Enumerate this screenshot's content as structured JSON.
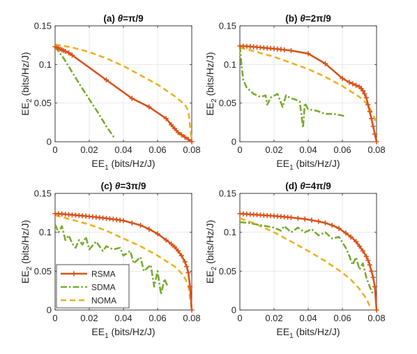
{
  "colors": {
    "RSMA": "#d95319",
    "SDMA": "#77ac30",
    "NOMA": "#edb120"
  },
  "legend": {
    "panel": 2,
    "placement": "bottom-left",
    "entries": [
      "RSMA",
      "SDMA",
      "NOMA"
    ]
  },
  "chart_data": [
    {
      "type": "line",
      "title_prefix": "(a) ",
      "title_theta": "θ",
      "title_value": "=π/9",
      "xlabel_main": "EE",
      "xlabel_sub": "1",
      "xlabel_unit": " (bits/Hz/J)",
      "ylabel_main": "EE",
      "ylabel_sub": "2",
      "ylabel_unit": " (bits/Hz/J)",
      "xlim": [
        0,
        0.08
      ],
      "ylim": [
        0,
        0.15
      ],
      "xticks": [
        0,
        0.02,
        0.04,
        0.06,
        0.08
      ],
      "xtick_labels": [
        "0",
        "0.02",
        "0.04",
        "0.06",
        "0.08"
      ],
      "yticks": [
        0,
        0.05,
        0.1,
        0.15
      ],
      "ytick_labels": [
        "0",
        "0.05",
        "0.1",
        "0.15"
      ],
      "grid": true,
      "series": [
        {
          "name": "RSMA",
          "style": "solid-plus",
          "x": [
            0,
            0.001,
            0.002,
            0.003,
            0.004,
            0.005,
            0.006,
            0.008,
            0.01,
            0.03,
            0.045,
            0.055,
            0.065,
            0.068,
            0.07,
            0.072,
            0.074,
            0.076,
            0.078,
            0.08
          ],
          "y": [
            0.123,
            0.122,
            0.121,
            0.12,
            0.119,
            0.118,
            0.117,
            0.115,
            0.112,
            0.08,
            0.056,
            0.045,
            0.03,
            0.022,
            0.017,
            0.012,
            0.009,
            0.006,
            0.003,
            0.0
          ]
        },
        {
          "name": "SDMA",
          "style": "dashdot",
          "x": [
            0,
            0.005,
            0.01,
            0.015,
            0.02,
            0.025,
            0.03,
            0.035
          ],
          "y": [
            0.123,
            0.108,
            0.09,
            0.072,
            0.055,
            0.038,
            0.02,
            0.004
          ]
        },
        {
          "name": "NOMA",
          "style": "dashed",
          "x": [
            0,
            0.01,
            0.02,
            0.03,
            0.04,
            0.05,
            0.06,
            0.07,
            0.076,
            0.078,
            0.08
          ],
          "y": [
            0.126,
            0.122,
            0.116,
            0.108,
            0.098,
            0.086,
            0.074,
            0.059,
            0.048,
            0.04,
            0.0
          ]
        }
      ]
    },
    {
      "type": "line",
      "title_prefix": "(b) ",
      "title_theta": "θ",
      "title_value": "=2π/9",
      "xlabel_main": "EE",
      "xlabel_sub": "1",
      "xlabel_unit": " (bits/Hz/J)",
      "ylabel_main": "EE",
      "ylabel_sub": "2",
      "ylabel_unit": " (bits/Hz/J)",
      "xlim": [
        0,
        0.08
      ],
      "ylim": [
        0,
        0.15
      ],
      "xticks": [
        0,
        0.02,
        0.04,
        0.06,
        0.08
      ],
      "xtick_labels": [
        "0",
        "0.02",
        "0.04",
        "0.06",
        "0.08"
      ],
      "yticks": [
        0,
        0.05,
        0.1,
        0.15
      ],
      "ytick_labels": [
        "0",
        "0.05",
        "0.1",
        "0.15"
      ],
      "grid": true,
      "series": [
        {
          "name": "RSMA",
          "style": "solid-plus",
          "x": [
            0,
            0.002,
            0.004,
            0.006,
            0.008,
            0.01,
            0.012,
            0.014,
            0.016,
            0.018,
            0.02,
            0.022,
            0.024,
            0.026,
            0.03,
            0.04,
            0.05,
            0.06,
            0.064,
            0.066,
            0.068,
            0.07,
            0.071,
            0.072,
            0.073,
            0.074,
            0.075,
            0.076,
            0.077,
            0.078,
            0.079,
            0.08
          ],
          "y": [
            0.124,
            0.1238,
            0.1235,
            0.1232,
            0.1228,
            0.1224,
            0.122,
            0.1216,
            0.1212,
            0.1208,
            0.1204,
            0.12,
            0.1195,
            0.119,
            0.118,
            0.114,
            0.101,
            0.082,
            0.077,
            0.075,
            0.073,
            0.071,
            0.069,
            0.066,
            0.062,
            0.057,
            0.048,
            0.039,
            0.03,
            0.02,
            0.01,
            0.0
          ]
        },
        {
          "name": "SDMA",
          "style": "dashdot",
          "x": [
            0,
            0.001,
            0.002,
            0.004,
            0.008,
            0.012,
            0.015,
            0.016,
            0.018,
            0.022,
            0.025,
            0.027,
            0.03,
            0.032,
            0.035,
            0.037,
            0.038,
            0.04,
            0.045,
            0.05,
            0.055,
            0.06,
            0.062
          ],
          "y": [
            0.124,
            0.098,
            0.08,
            0.07,
            0.062,
            0.058,
            0.06,
            0.048,
            0.057,
            0.062,
            0.045,
            0.06,
            0.056,
            0.055,
            0.052,
            0.018,
            0.05,
            0.042,
            0.04,
            0.036,
            0.036,
            0.034,
            0.032
          ]
        },
        {
          "name": "NOMA",
          "style": "dashed",
          "x": [
            0,
            0.01,
            0.02,
            0.03,
            0.04,
            0.05,
            0.06,
            0.07,
            0.075,
            0.078,
            0.08
          ],
          "y": [
            0.122,
            0.116,
            0.11,
            0.102,
            0.094,
            0.084,
            0.072,
            0.058,
            0.048,
            0.035,
            0.024
          ]
        }
      ]
    },
    {
      "type": "line",
      "title_prefix": "(c) ",
      "title_theta": "θ",
      "title_value": "=3π/9",
      "xlabel_main": "EE",
      "xlabel_sub": "1",
      "xlabel_unit": " (bits/Hz/J)",
      "ylabel_main": "EE",
      "ylabel_sub": "2",
      "ylabel_unit": " (bits/Hz/J)",
      "xlim": [
        0,
        0.08
      ],
      "ylim": [
        0,
        0.15
      ],
      "xticks": [
        0,
        0.02,
        0.04,
        0.06,
        0.08
      ],
      "xtick_labels": [
        "0",
        "0.02",
        "0.04",
        "0.06",
        "0.08"
      ],
      "yticks": [
        0,
        0.05,
        0.1,
        0.15
      ],
      "ytick_labels": [
        "0",
        "0.05",
        "0.1",
        "0.15"
      ],
      "grid": true,
      "series": [
        {
          "name": "RSMA",
          "style": "solid-plus",
          "x": [
            0,
            0.002,
            0.004,
            0.006,
            0.008,
            0.01,
            0.012,
            0.014,
            0.016,
            0.018,
            0.02,
            0.022,
            0.024,
            0.026,
            0.028,
            0.03,
            0.032,
            0.034,
            0.036,
            0.038,
            0.04,
            0.045,
            0.05,
            0.055,
            0.06,
            0.065,
            0.068,
            0.07,
            0.072,
            0.074,
            0.076,
            0.077,
            0.078,
            0.079,
            0.08
          ],
          "y": [
            0.124,
            0.1238,
            0.1235,
            0.1232,
            0.1228,
            0.1224,
            0.122,
            0.1216,
            0.1212,
            0.1208,
            0.1204,
            0.1199,
            0.1194,
            0.1189,
            0.1184,
            0.1179,
            0.1174,
            0.1168,
            0.1162,
            0.1156,
            0.115,
            0.112,
            0.109,
            0.104,
            0.098,
            0.09,
            0.085,
            0.081,
            0.076,
            0.07,
            0.062,
            0.056,
            0.048,
            0.03,
            0.0
          ]
        },
        {
          "name": "SDMA",
          "style": "dashdot",
          "x": [
            0,
            0.002,
            0.004,
            0.006,
            0.008,
            0.01,
            0.012,
            0.014,
            0.016,
            0.018,
            0.02,
            0.024,
            0.028,
            0.03,
            0.034,
            0.038,
            0.04,
            0.044,
            0.046,
            0.05,
            0.052,
            0.056,
            0.058,
            0.06,
            0.062,
            0.064,
            0.066
          ],
          "y": [
            0.11,
            0.1,
            0.108,
            0.09,
            0.096,
            0.086,
            0.08,
            0.09,
            0.084,
            0.094,
            0.078,
            0.088,
            0.076,
            0.082,
            0.078,
            0.08,
            0.07,
            0.076,
            0.06,
            0.068,
            0.05,
            0.058,
            0.03,
            0.05,
            0.02,
            0.04,
            0.03
          ]
        },
        {
          "name": "NOMA",
          "style": "dashed",
          "x": [
            0,
            0.01,
            0.02,
            0.03,
            0.04,
            0.05,
            0.06,
            0.07,
            0.075,
            0.078,
            0.08
          ],
          "y": [
            0.122,
            0.116,
            0.11,
            0.102,
            0.092,
            0.082,
            0.07,
            0.056,
            0.045,
            0.032,
            0.0
          ]
        }
      ]
    },
    {
      "type": "line",
      "title_prefix": "(d) ",
      "title_theta": "θ",
      "title_value": "=4π/9",
      "xlabel_main": "EE",
      "xlabel_sub": "1",
      "xlabel_unit": " (bits/Hz/J)",
      "ylabel_main": "EE",
      "ylabel_sub": "2",
      "ylabel_unit": " (bits/Hz/J)",
      "xlim": [
        0,
        0.08
      ],
      "ylim": [
        0,
        0.15
      ],
      "xticks": [
        0,
        0.02,
        0.04,
        0.06,
        0.08
      ],
      "xtick_labels": [
        "0",
        "0.02",
        "0.04",
        "0.06",
        "0.08"
      ],
      "yticks": [
        0,
        0.05,
        0.1,
        0.15
      ],
      "ytick_labels": [
        "0",
        "0.05",
        "0.1",
        "0.15"
      ],
      "grid": true,
      "series": [
        {
          "name": "RSMA",
          "style": "solid-plus",
          "x": [
            0,
            0.002,
            0.004,
            0.006,
            0.008,
            0.01,
            0.012,
            0.014,
            0.016,
            0.018,
            0.02,
            0.022,
            0.024,
            0.026,
            0.028,
            0.03,
            0.034,
            0.038,
            0.042,
            0.046,
            0.05,
            0.054,
            0.058,
            0.062,
            0.065,
            0.068,
            0.07,
            0.072,
            0.074,
            0.075,
            0.076,
            0.077,
            0.078,
            0.079,
            0.08
          ],
          "y": [
            0.124,
            0.1237,
            0.1234,
            0.1231,
            0.1228,
            0.1225,
            0.1222,
            0.1219,
            0.1216,
            0.1213,
            0.121,
            0.1206,
            0.1202,
            0.1198,
            0.1194,
            0.119,
            0.118,
            0.117,
            0.1155,
            0.114,
            0.112,
            0.109,
            0.105,
            0.099,
            0.094,
            0.088,
            0.082,
            0.076,
            0.069,
            0.064,
            0.058,
            0.05,
            0.042,
            0.03,
            0.0
          ]
        },
        {
          "name": "SDMA",
          "style": "dashdot",
          "x": [
            0,
            0.005,
            0.01,
            0.015,
            0.02,
            0.024,
            0.026,
            0.03,
            0.034,
            0.038,
            0.042,
            0.046,
            0.05,
            0.054,
            0.058,
            0.062,
            0.064,
            0.066,
            0.068,
            0.07,
            0.072,
            0.074,
            0.076,
            0.078
          ],
          "y": [
            0.113,
            0.112,
            0.11,
            0.108,
            0.106,
            0.102,
            0.108,
            0.1,
            0.106,
            0.1,
            0.104,
            0.096,
            0.1,
            0.092,
            0.094,
            0.08,
            0.07,
            0.058,
            0.068,
            0.052,
            0.06,
            0.042,
            0.03,
            0.02
          ]
        },
        {
          "name": "NOMA",
          "style": "dashed",
          "x": [
            0,
            0.01,
            0.02,
            0.03,
            0.04,
            0.05,
            0.06,
            0.065,
            0.07,
            0.073,
            0.075,
            0.077
          ],
          "y": [
            0.118,
            0.11,
            0.1,
            0.088,
            0.076,
            0.063,
            0.048,
            0.039,
            0.027,
            0.018,
            0.01,
            0.0
          ]
        }
      ]
    }
  ]
}
